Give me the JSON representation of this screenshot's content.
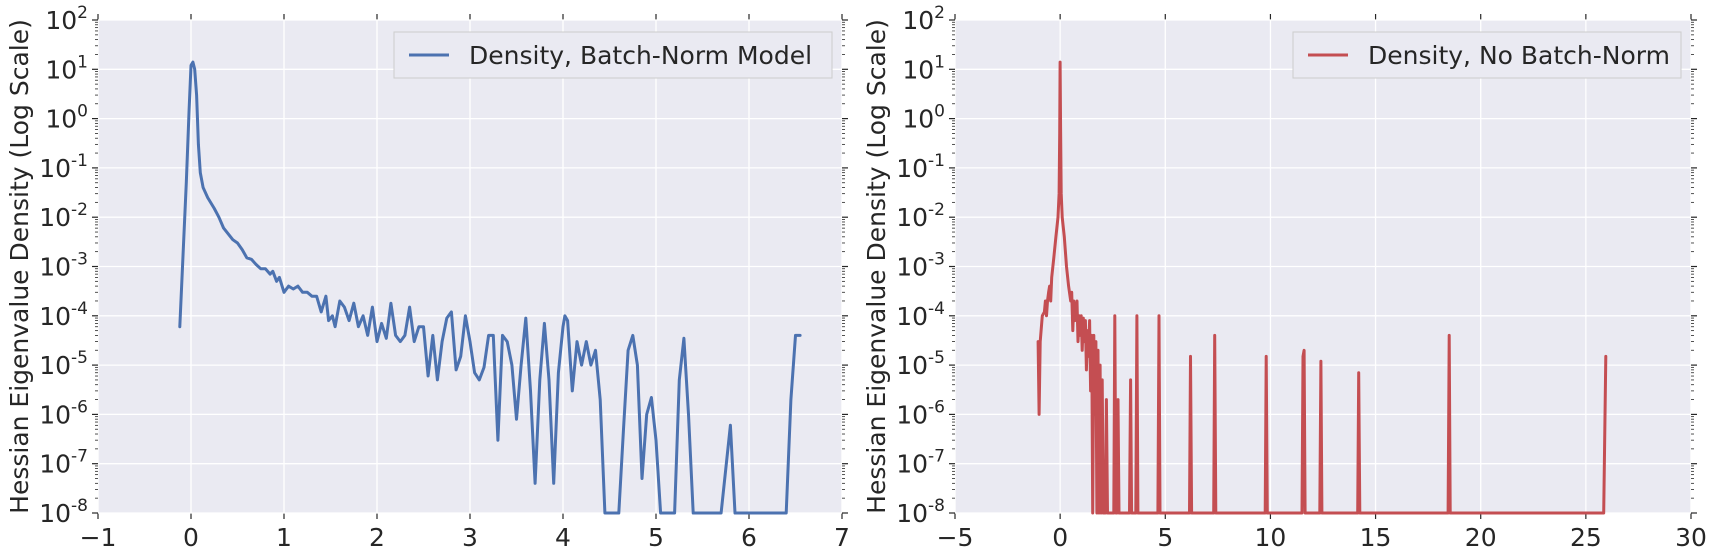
{
  "chart_data": [
    {
      "type": "line",
      "title": "",
      "xlabel": "",
      "ylabel": "Hessian Eigenvalue Density (Log Scale)",
      "yscale": "log",
      "xlim": [
        -1,
        7
      ],
      "ylim": [
        1e-08,
        100
      ],
      "x_ticks": [
        -1,
        0,
        1,
        2,
        3,
        4,
        5,
        6,
        7
      ],
      "x_tick_labels": [
        "−1",
        "0",
        "1",
        "2",
        "3",
        "4",
        "5",
        "6",
        "7"
      ],
      "y_ticks": [
        1e-08,
        1e-07,
        1e-06,
        1e-05,
        0.0001,
        0.001,
        0.01,
        0.1,
        1,
        10,
        100
      ],
      "y_tick_labels": [
        {
          "base": "10",
          "exp": "-8"
        },
        {
          "base": "10",
          "exp": "-7"
        },
        {
          "base": "10",
          "exp": "-6"
        },
        {
          "base": "10",
          "exp": "-5"
        },
        {
          "base": "10",
          "exp": "-4"
        },
        {
          "base": "10",
          "exp": "-3"
        },
        {
          "base": "10",
          "exp": "-2"
        },
        {
          "base": "10",
          "exp": "-1"
        },
        {
          "base": "10",
          "exp": "0"
        },
        {
          "base": "10",
          "exp": "1"
        },
        {
          "base": "10",
          "exp": "2"
        }
      ],
      "grid": true,
      "legend_position": "top-right",
      "series": [
        {
          "name": "Density, Batch-Norm Model",
          "color": "#4c72b0",
          "points": [
            [
              -0.12,
              6e-05
            ],
            [
              -0.05,
              0.05
            ],
            [
              -0.02,
              1.5
            ],
            [
              0.0,
              12
            ],
            [
              0.02,
              14
            ],
            [
              0.04,
              10
            ],
            [
              0.06,
              3
            ],
            [
              0.08,
              0.3
            ],
            [
              0.1,
              0.08
            ],
            [
              0.13,
              0.04
            ],
            [
              0.18,
              0.025
            ],
            [
              0.25,
              0.015
            ],
            [
              0.3,
              0.01
            ],
            [
              0.35,
              0.006
            ],
            [
              0.45,
              0.0035
            ],
            [
              0.5,
              0.003
            ],
            [
              0.55,
              0.0022
            ],
            [
              0.6,
              0.0015
            ],
            [
              0.65,
              0.0014
            ],
            [
              0.7,
              0.0011
            ],
            [
              0.75,
              0.0009
            ],
            [
              0.8,
              0.0009
            ],
            [
              0.85,
              0.0007
            ],
            [
              0.88,
              0.0008
            ],
            [
              0.92,
              0.0005
            ],
            [
              0.95,
              0.0006
            ],
            [
              1.0,
              0.0003
            ],
            [
              1.05,
              0.0004
            ],
            [
              1.1,
              0.00035
            ],
            [
              1.15,
              0.0004
            ],
            [
              1.2,
              0.0003
            ],
            [
              1.25,
              0.0003
            ],
            [
              1.3,
              0.00025
            ],
            [
              1.35,
              0.00025
            ],
            [
              1.4,
              0.00012
            ],
            [
              1.45,
              0.00025
            ],
            [
              1.48,
              8e-05
            ],
            [
              1.52,
              0.0001
            ],
            [
              1.55,
              6e-05
            ],
            [
              1.6,
              0.0002
            ],
            [
              1.65,
              0.00015
            ],
            [
              1.7,
              8e-05
            ],
            [
              1.75,
              0.00018
            ],
            [
              1.8,
              6e-05
            ],
            [
              1.85,
              0.0001
            ],
            [
              1.9,
              4e-05
            ],
            [
              1.95,
              0.00015
            ],
            [
              2.0,
              3e-05
            ],
            [
              2.05,
              7e-05
            ],
            [
              2.1,
              3.5e-05
            ],
            [
              2.15,
              0.00018
            ],
            [
              2.2,
              4e-05
            ],
            [
              2.25,
              3e-05
            ],
            [
              2.3,
              4e-05
            ],
            [
              2.35,
              0.00015
            ],
            [
              2.4,
              3e-05
            ],
            [
              2.45,
              6e-05
            ],
            [
              2.5,
              6e-05
            ],
            [
              2.55,
              6e-06
            ],
            [
              2.6,
              4e-05
            ],
            [
              2.65,
              5e-06
            ],
            [
              2.7,
              3e-05
            ],
            [
              2.75,
              9e-05
            ],
            [
              2.8,
              0.00012
            ],
            [
              2.85,
              8e-06
            ],
            [
              2.9,
              1.5e-05
            ],
            [
              2.95,
              0.0001
            ],
            [
              3.0,
              3e-05
            ],
            [
              3.05,
              7e-06
            ],
            [
              3.1,
              5e-06
            ],
            [
              3.15,
              9e-06
            ],
            [
              3.2,
              4e-05
            ],
            [
              3.25,
              4e-05
            ],
            [
              3.3,
              3e-07
            ],
            [
              3.35,
              4e-05
            ],
            [
              3.4,
              3e-05
            ],
            [
              3.45,
              1e-05
            ],
            [
              3.5,
              8e-07
            ],
            [
              3.55,
              1e-05
            ],
            [
              3.6,
              9e-05
            ],
            [
              3.65,
              3e-06
            ],
            [
              3.7,
              4e-08
            ],
            [
              3.75,
              5e-06
            ],
            [
              3.8,
              7e-05
            ],
            [
              3.85,
              5e-06
            ],
            [
              3.9,
              4e-08
            ],
            [
              3.95,
              7e-06
            ],
            [
              4.0,
              6e-05
            ],
            [
              4.02,
              0.0001
            ],
            [
              4.05,
              8e-05
            ],
            [
              4.1,
              3e-06
            ],
            [
              4.15,
              3e-05
            ],
            [
              4.2,
              1e-05
            ],
            [
              4.25,
              3e-05
            ],
            [
              4.3,
              1e-05
            ],
            [
              4.35,
              2e-05
            ],
            [
              4.4,
              2e-06
            ],
            [
              4.45,
              1e-08
            ],
            [
              4.6,
              1e-08
            ],
            [
              4.65,
              5e-07
            ],
            [
              4.7,
              2e-05
            ],
            [
              4.75,
              4e-05
            ],
            [
              4.8,
              1e-05
            ],
            [
              4.85,
              5e-08
            ],
            [
              4.9,
              1e-06
            ],
            [
              4.95,
              2.2e-06
            ],
            [
              5.0,
              3e-07
            ],
            [
              5.05,
              1e-08
            ],
            [
              5.2,
              1e-08
            ],
            [
              5.25,
              5e-06
            ],
            [
              5.3,
              3.5e-05
            ],
            [
              5.35,
              1e-06
            ],
            [
              5.4,
              1e-08
            ],
            [
              5.7,
              1e-08
            ],
            [
              5.8,
              6e-07
            ],
            [
              5.85,
              1e-08
            ],
            [
              6.4,
              1e-08
            ],
            [
              6.45,
              2e-06
            ],
            [
              6.5,
              4e-05
            ],
            [
              6.55,
              4e-05
            ]
          ]
        }
      ]
    },
    {
      "type": "line",
      "title": "",
      "xlabel": "",
      "ylabel": "Hessian Eigenvalue Density (Log Scale)",
      "yscale": "log",
      "xlim": [
        -5,
        30
      ],
      "ylim": [
        1e-08,
        100
      ],
      "x_ticks": [
        -5,
        0,
        5,
        10,
        15,
        20,
        25,
        30
      ],
      "x_tick_labels": [
        "−5",
        "0",
        "5",
        "10",
        "15",
        "20",
        "25",
        "30"
      ],
      "y_ticks": [
        1e-08,
        1e-07,
        1e-06,
        1e-05,
        0.0001,
        0.001,
        0.01,
        0.1,
        1,
        10,
        100
      ],
      "y_tick_labels": [
        {
          "base": "10",
          "exp": "-8"
        },
        {
          "base": "10",
          "exp": "-7"
        },
        {
          "base": "10",
          "exp": "-6"
        },
        {
          "base": "10",
          "exp": "-5"
        },
        {
          "base": "10",
          "exp": "-4"
        },
        {
          "base": "10",
          "exp": "-3"
        },
        {
          "base": "10",
          "exp": "-2"
        },
        {
          "base": "10",
          "exp": "-1"
        },
        {
          "base": "10",
          "exp": "0"
        },
        {
          "base": "10",
          "exp": "1"
        },
        {
          "base": "10",
          "exp": "2"
        }
      ],
      "grid": true,
      "legend_position": "top-right",
      "series": [
        {
          "name": "Density, No Batch-Norm",
          "color": "#c44e52",
          "points": [
            [
              -1.05,
              3e-05
            ],
            [
              -1.0,
              1e-06
            ],
            [
              -0.95,
              3e-05
            ],
            [
              -0.85,
              0.0001
            ],
            [
              -0.75,
              0.00012
            ],
            [
              -0.7,
              0.0002
            ],
            [
              -0.65,
              0.0001
            ],
            [
              -0.6,
              0.0002
            ],
            [
              -0.55,
              0.0003
            ],
            [
              -0.5,
              0.0004
            ],
            [
              -0.45,
              0.0002
            ],
            [
              -0.4,
              0.0006
            ],
            [
              -0.3,
              0.0015
            ],
            [
              -0.2,
              0.004
            ],
            [
              -0.1,
              0.01
            ],
            [
              -0.05,
              0.03
            ],
            [
              -0.02,
              0.5
            ],
            [
              0.0,
              14
            ],
            [
              0.02,
              0.6
            ],
            [
              0.05,
              0.03
            ],
            [
              0.1,
              0.01
            ],
            [
              0.2,
              0.004
            ],
            [
              0.3,
              0.001
            ],
            [
              0.4,
              0.0004
            ],
            [
              0.5,
              0.0002
            ],
            [
              0.55,
              0.0003
            ],
            [
              0.6,
              5e-05
            ],
            [
              0.65,
              0.0002
            ],
            [
              0.7,
              8e-05
            ],
            [
              0.8,
              0.0002
            ],
            [
              0.85,
              3e-05
            ],
            [
              0.9,
              0.0001
            ],
            [
              0.95,
              4e-05
            ],
            [
              1.0,
              0.0001
            ],
            [
              1.05,
              2e-05
            ],
            [
              1.1,
              9e-05
            ],
            [
              1.15,
              3e-05
            ],
            [
              1.2,
              8e-05
            ],
            [
              1.25,
              8e-06
            ],
            [
              1.3,
              5e-05
            ],
            [
              1.35,
              1.5e-05
            ],
            [
              1.4,
              8e-05
            ],
            [
              1.45,
              3e-06
            ],
            [
              1.5,
              4e-05
            ],
            [
              1.55,
              1e-08
            ],
            [
              1.6,
              4e-05
            ],
            [
              1.65,
              1e-06
            ],
            [
              1.7,
              3e-05
            ],
            [
              1.75,
              1e-08
            ],
            [
              1.8,
              2e-05
            ],
            [
              1.85,
              1e-08
            ],
            [
              1.9,
              1e-05
            ],
            [
              1.95,
              1e-08
            ],
            [
              2.0,
              5e-06
            ],
            [
              2.05,
              1e-08
            ],
            [
              2.15,
              1e-08
            ],
            [
              2.2,
              2e-06
            ],
            [
              2.25,
              1e-08
            ],
            [
              2.55,
              1e-08
            ],
            [
              2.6,
              0.0001
            ],
            [
              2.65,
              1e-08
            ],
            [
              2.7,
              1e-08
            ],
            [
              2.75,
              2e-06
            ],
            [
              2.8,
              1e-08
            ],
            [
              3.3,
              1e-08
            ],
            [
              3.35,
              5e-06
            ],
            [
              3.4,
              1e-08
            ],
            [
              3.6,
              1e-08
            ],
            [
              3.65,
              0.0001
            ],
            [
              3.7,
              1e-08
            ],
            [
              4.65,
              1e-08
            ],
            [
              4.7,
              0.0001
            ],
            [
              4.75,
              1e-08
            ],
            [
              6.15,
              1e-08
            ],
            [
              6.2,
              1.5e-05
            ],
            [
              6.25,
              1e-08
            ],
            [
              7.3,
              1e-08
            ],
            [
              7.35,
              4e-05
            ],
            [
              7.4,
              1e-08
            ],
            [
              9.75,
              1e-08
            ],
            [
              9.8,
              1.5e-05
            ],
            [
              9.85,
              1e-08
            ],
            [
              11.5,
              1e-08
            ],
            [
              11.55,
              1.5e-05
            ],
            [
              11.6,
              2e-05
            ],
            [
              11.65,
              1e-08
            ],
            [
              12.35,
              1e-08
            ],
            [
              12.4,
              1.2e-05
            ],
            [
              12.45,
              1e-08
            ],
            [
              14.15,
              1e-08
            ],
            [
              14.2,
              7e-06
            ],
            [
              14.25,
              1e-08
            ],
            [
              18.45,
              1e-08
            ],
            [
              18.5,
              4e-05
            ],
            [
              18.55,
              1e-08
            ],
            [
              25.85,
              1e-08
            ],
            [
              25.95,
              1.5e-05
            ]
          ]
        }
      ]
    }
  ]
}
